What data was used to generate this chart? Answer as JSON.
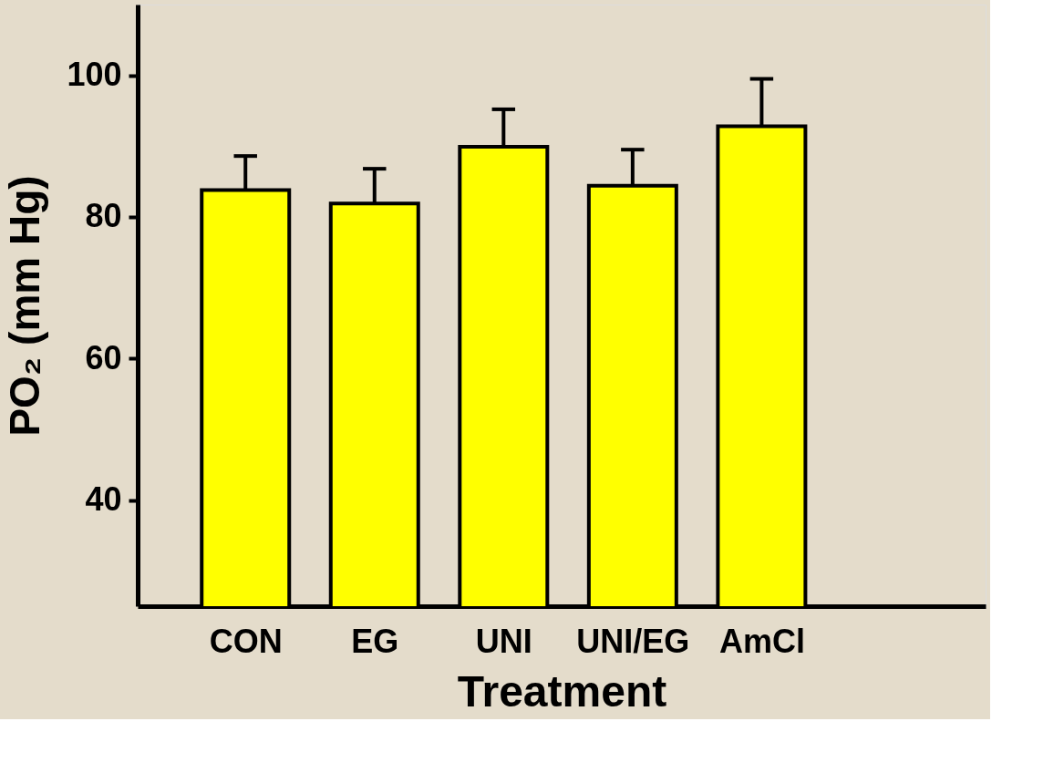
{
  "chart_data": {
    "type": "bar",
    "xlabel": "Treatment",
    "ylabel": "PO₂ (mm Hg)",
    "categories": [
      "CON",
      "EG",
      "UNI",
      "UNI/EG",
      "AmCl"
    ],
    "values": [
      83.8,
      81.9,
      89.9,
      84.4,
      92.8
    ],
    "errors": [
      [
        83.8,
        88.6
      ],
      [
        81.9,
        86.8
      ],
      [
        89.9,
        95.2
      ],
      [
        84.4,
        89.5
      ],
      [
        92.8,
        99.5
      ]
    ],
    "color": "#ffff00",
    "ylim": [
      25,
      110
    ],
    "yticks": [
      40,
      60,
      80,
      100
    ],
    "grid": false
  }
}
